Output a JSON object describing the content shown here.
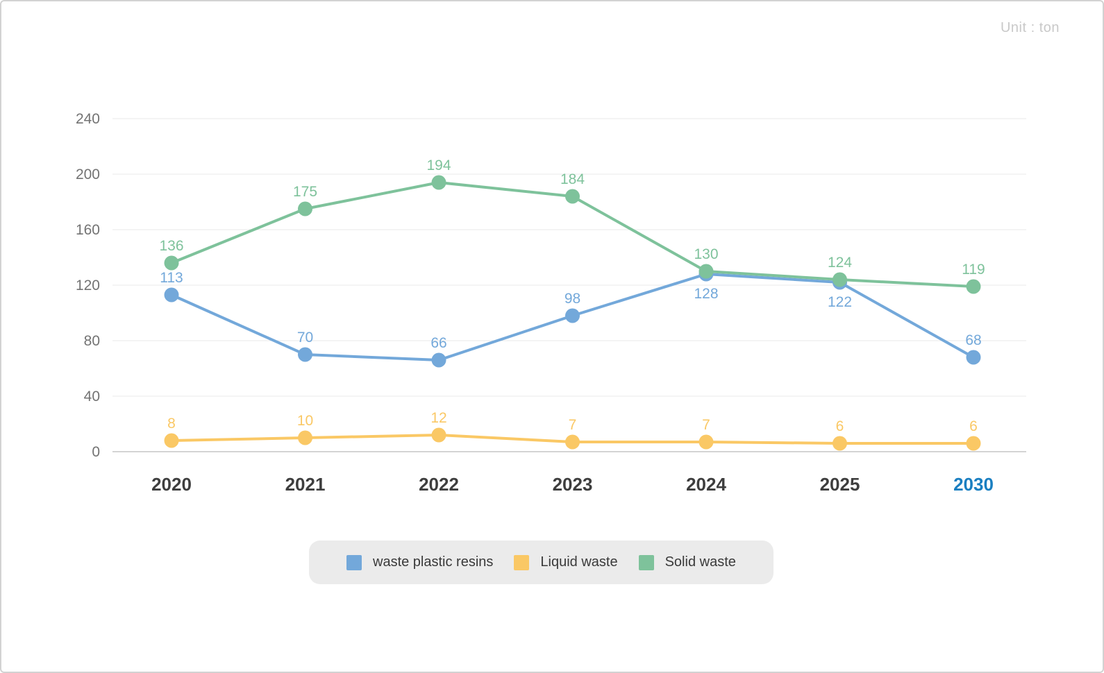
{
  "unit_label": "Unit : ton",
  "colors": {
    "series_blue": "#73a8da",
    "series_yellow": "#fac865",
    "series_green": "#7ec29b",
    "x_axis_label": "#3e3e3e",
    "x_axis_highlight": "#1a7fc1",
    "y_tick_label": "#737373",
    "gridline": "#eaeaea",
    "zero_line": "#c6c6c6",
    "unit_text": "#c9c9c9",
    "legend_background": "#ebebeb",
    "legend_text": "#3a3a3a"
  },
  "chart_data": {
    "type": "line",
    "title": "",
    "unit": "ton",
    "xlabel": "",
    "ylabel": "",
    "categories": [
      "2020",
      "2021",
      "2022",
      "2023",
      "2024",
      "2025",
      "2030"
    ],
    "highlighted_category": "2030",
    "ylim": [
      0,
      240
    ],
    "yticks": [
      0,
      40,
      80,
      120,
      160,
      200,
      240
    ],
    "grid": true,
    "legend_position": "bottom",
    "series": [
      {
        "name": "waste plastic resins",
        "color": "#73a8da",
        "values": [
          113,
          70,
          66,
          98,
          128,
          122,
          68
        ],
        "label_below_indices": [
          4,
          5
        ]
      },
      {
        "name": "Liquid waste",
        "color": "#fac865",
        "values": [
          8,
          10,
          12,
          7,
          7,
          6,
          6
        ],
        "label_below_indices": []
      },
      {
        "name": "Solid waste",
        "color": "#7ec29b",
        "values": [
          136,
          175,
          194,
          184,
          130,
          124,
          119
        ],
        "label_below_indices": []
      }
    ]
  }
}
